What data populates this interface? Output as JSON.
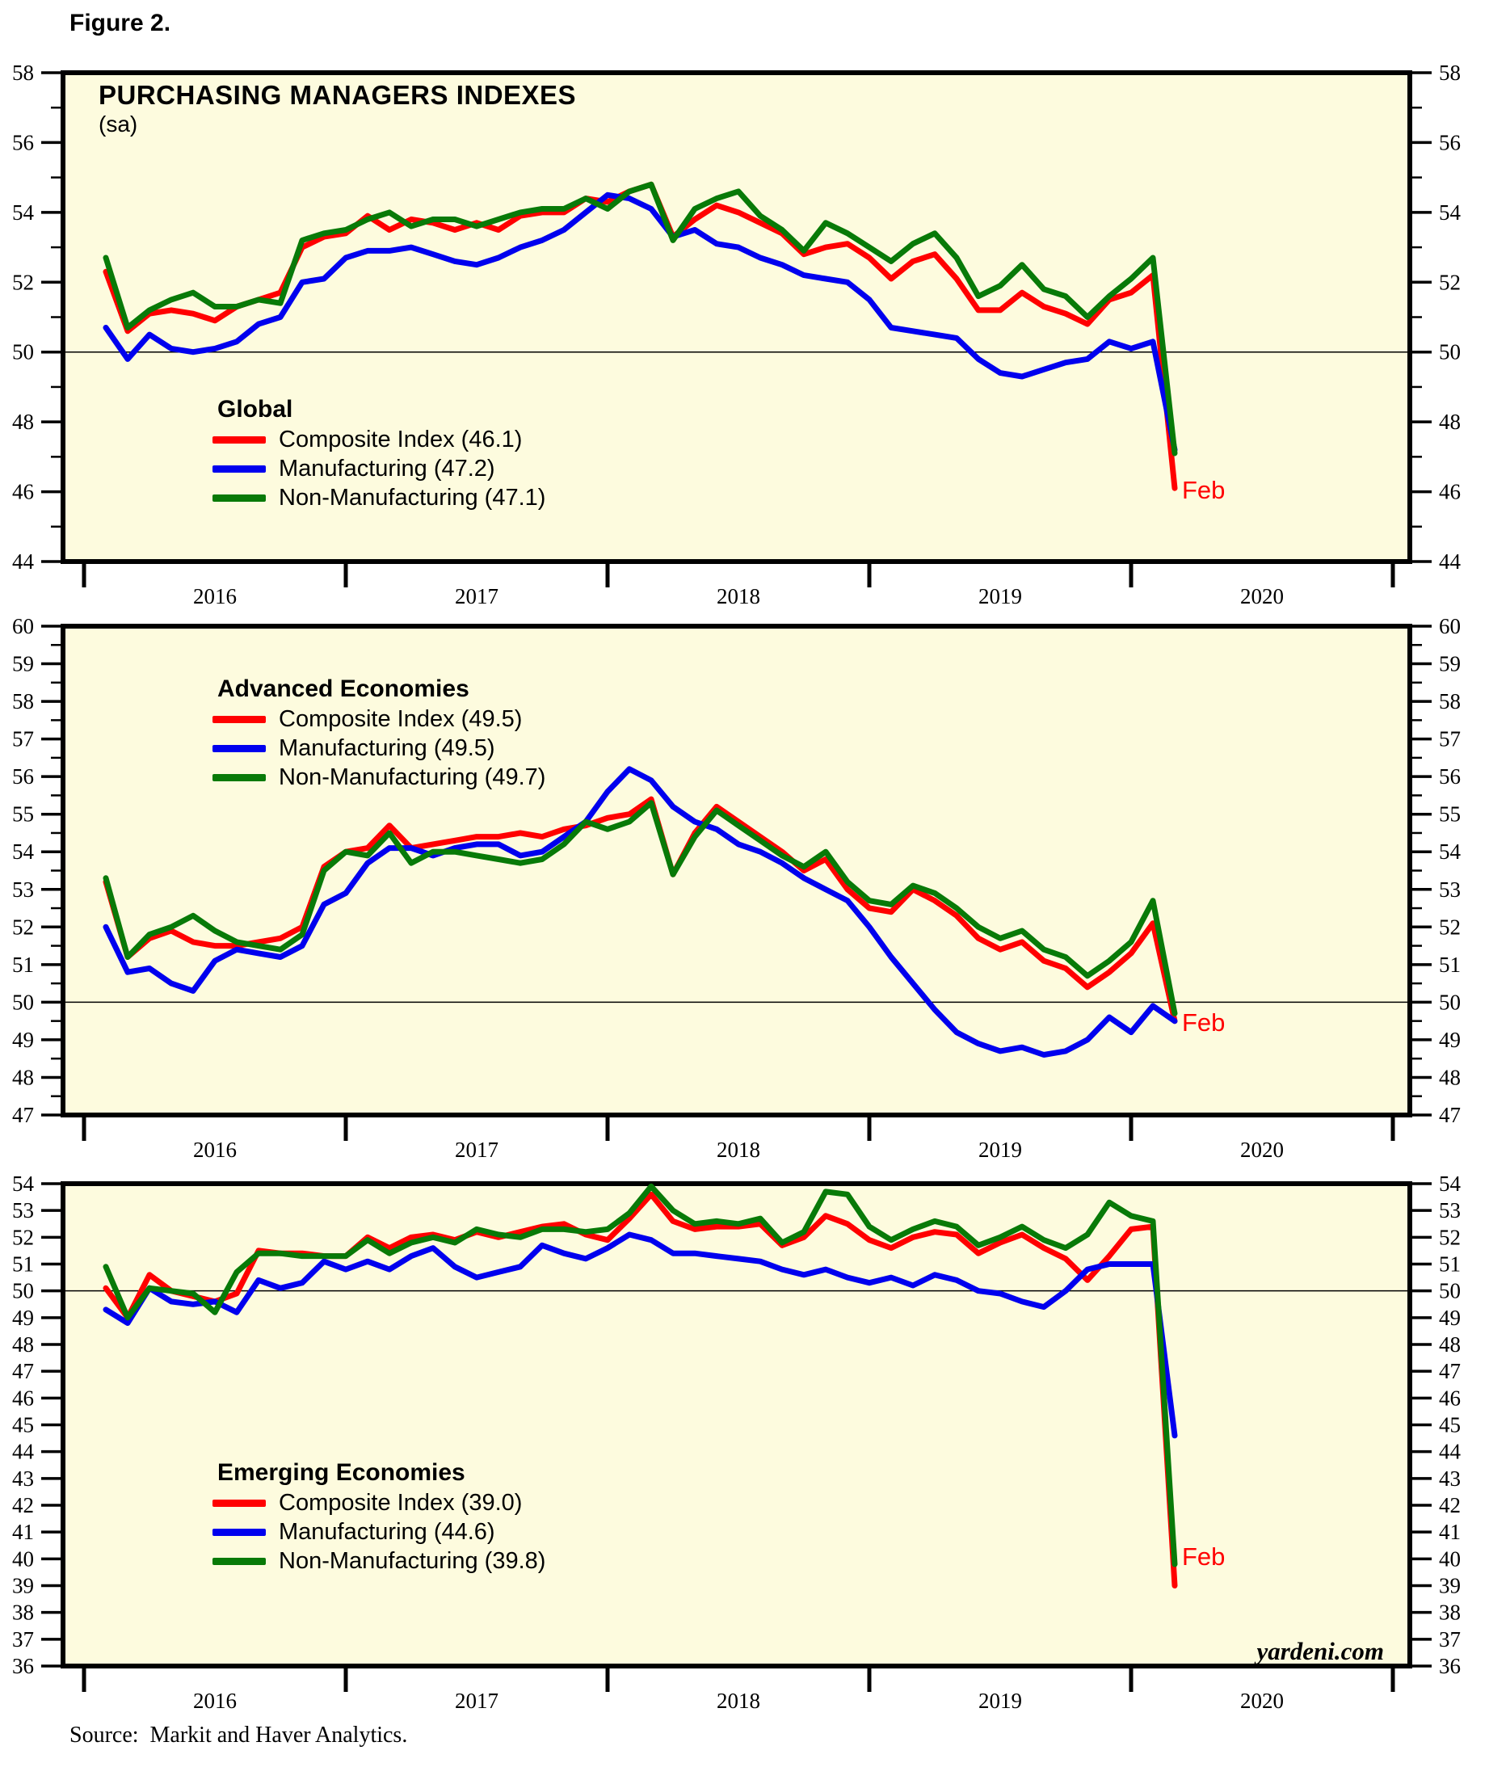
{
  "figure": {
    "label": "Figure 2."
  },
  "source_line": "Source:  Markit and Haver Analytics.",
  "watermark": "yardeni.com",
  "colors": {
    "composite": "#ff0000",
    "manufacturing": "#0000ee",
    "non_manufacturing": "#087a08",
    "panel_background": "#fdfbde",
    "axis": "#000000",
    "feb_label": "#ff0000"
  },
  "x_axis": {
    "years": [
      "2016",
      "2017",
      "2018",
      "2019",
      "2020"
    ],
    "start_month": "2016-01",
    "end_month": "2020-02"
  },
  "chart_data": [
    {
      "type": "line",
      "title": "PURCHASING MANAGERS INDEXES",
      "subtitle": "(sa)",
      "group_label": "Global",
      "last_point_label": "Feb",
      "ylim": [
        44,
        58
      ],
      "ytick_label_step": 2,
      "ytick_minor_step": 1,
      "reference_line": 50,
      "grid": false,
      "legend_position": "lower-left",
      "series": [
        {
          "name": "Composite Index (46.1)",
          "color": "#ff0000",
          "values": [
            52.3,
            50.6,
            51.1,
            51.2,
            51.1,
            50.9,
            51.3,
            51.5,
            51.7,
            53.0,
            53.3,
            53.4,
            53.9,
            53.5,
            53.8,
            53.7,
            53.5,
            53.7,
            53.5,
            53.9,
            54.0,
            54.0,
            54.4,
            54.3,
            54.6,
            54.8,
            53.3,
            53.8,
            54.2,
            54.0,
            53.7,
            53.4,
            52.8,
            53.0,
            53.1,
            52.7,
            52.1,
            52.6,
            52.8,
            52.1,
            51.2,
            51.2,
            51.7,
            51.3,
            51.1,
            50.8,
            51.5,
            51.7,
            52.2,
            46.1
          ]
        },
        {
          "name": "Manufacturing (47.2)",
          "color": "#0000ee",
          "values": [
            50.7,
            49.8,
            50.5,
            50.1,
            50.0,
            50.1,
            50.3,
            50.8,
            51.0,
            52.0,
            52.1,
            52.7,
            52.9,
            52.9,
            53.0,
            52.8,
            52.6,
            52.5,
            52.7,
            53.0,
            53.2,
            53.5,
            54.0,
            54.5,
            54.4,
            54.1,
            53.3,
            53.5,
            53.1,
            53.0,
            52.7,
            52.5,
            52.2,
            52.1,
            52.0,
            51.5,
            50.7,
            50.6,
            50.5,
            50.4,
            49.8,
            49.4,
            49.3,
            49.5,
            49.7,
            49.8,
            50.3,
            50.1,
            50.3,
            47.2
          ]
        },
        {
          "name": "Non-Manufacturing (47.1)",
          "color": "#087a08",
          "values": [
            52.7,
            50.7,
            51.2,
            51.5,
            51.7,
            51.3,
            51.3,
            51.5,
            51.4,
            53.2,
            53.4,
            53.5,
            53.8,
            54.0,
            53.6,
            53.8,
            53.8,
            53.6,
            53.8,
            54.0,
            54.1,
            54.1,
            54.4,
            54.1,
            54.6,
            54.8,
            53.2,
            54.1,
            54.4,
            54.6,
            53.9,
            53.5,
            52.9,
            53.7,
            53.4,
            53.0,
            52.6,
            53.1,
            53.4,
            52.7,
            51.6,
            51.9,
            52.5,
            51.8,
            51.6,
            51.0,
            51.6,
            52.1,
            52.7,
            47.1
          ]
        }
      ]
    },
    {
      "type": "line",
      "title": "",
      "subtitle": "",
      "group_label": "Advanced Economies",
      "last_point_label": "Feb",
      "ylim": [
        47,
        60
      ],
      "ytick_label_step": 1,
      "ytick_minor_step": 0.5,
      "reference_line": 50,
      "grid": false,
      "legend_position": "upper-left",
      "series": [
        {
          "name": "Composite Index (49.5)",
          "color": "#ff0000",
          "values": [
            53.2,
            51.2,
            51.7,
            51.9,
            51.6,
            51.5,
            51.5,
            51.6,
            51.7,
            52.0,
            53.6,
            54.0,
            54.1,
            54.7,
            54.1,
            54.2,
            54.3,
            54.4,
            54.4,
            54.5,
            54.4,
            54.6,
            54.7,
            54.9,
            55.0,
            55.4,
            53.4,
            54.5,
            55.2,
            54.8,
            54.4,
            54.0,
            53.5,
            53.8,
            53.0,
            52.5,
            52.4,
            53.0,
            52.7,
            52.3,
            51.7,
            51.4,
            51.6,
            51.1,
            50.9,
            50.4,
            50.8,
            51.3,
            52.1,
            49.5
          ]
        },
        {
          "name": "Manufacturing (49.5)",
          "color": "#0000ee",
          "values": [
            52.0,
            50.8,
            50.9,
            50.5,
            50.3,
            51.1,
            51.4,
            51.3,
            51.2,
            51.5,
            52.6,
            52.9,
            53.7,
            54.1,
            54.1,
            53.9,
            54.1,
            54.2,
            54.2,
            53.9,
            54.0,
            54.4,
            54.8,
            55.6,
            56.2,
            55.9,
            55.2,
            54.8,
            54.6,
            54.2,
            54.0,
            53.7,
            53.3,
            53.0,
            52.7,
            52.0,
            51.2,
            50.5,
            49.8,
            49.2,
            48.9,
            48.7,
            48.8,
            48.6,
            48.7,
            49.0,
            49.6,
            49.2,
            49.9,
            49.5
          ]
        },
        {
          "name": "Non-Manufacturing (49.7)",
          "color": "#087a08",
          "values": [
            53.3,
            51.2,
            51.8,
            52.0,
            52.3,
            51.9,
            51.6,
            51.5,
            51.4,
            51.8,
            53.5,
            54.0,
            53.9,
            54.5,
            53.7,
            54.0,
            54.0,
            53.9,
            53.8,
            53.7,
            53.8,
            54.2,
            54.8,
            54.6,
            54.8,
            55.3,
            53.4,
            54.4,
            55.1,
            54.7,
            54.3,
            53.9,
            53.6,
            54.0,
            53.2,
            52.7,
            52.6,
            53.1,
            52.9,
            52.5,
            52.0,
            51.7,
            51.9,
            51.4,
            51.2,
            50.7,
            51.1,
            51.6,
            52.7,
            49.7
          ]
        }
      ]
    },
    {
      "type": "line",
      "title": "",
      "subtitle": "",
      "group_label": "Emerging Economies",
      "last_point_label": "Feb",
      "ylim": [
        36,
        54
      ],
      "ytick_label_step": 1,
      "ytick_minor_step": null,
      "reference_line": 50,
      "grid": false,
      "legend_position": "lower-left",
      "series": [
        {
          "name": "Composite Index (39.0)",
          "color": "#ff0000",
          "values": [
            50.1,
            49.0,
            50.6,
            50.0,
            49.8,
            49.6,
            49.9,
            51.5,
            51.4,
            51.4,
            51.3,
            51.3,
            52.0,
            51.6,
            52.0,
            52.1,
            51.9,
            52.2,
            52.0,
            52.2,
            52.4,
            52.5,
            52.1,
            51.9,
            52.7,
            53.6,
            52.6,
            52.3,
            52.4,
            52.4,
            52.5,
            51.7,
            52.0,
            52.8,
            52.5,
            51.9,
            51.6,
            52.0,
            52.2,
            52.1,
            51.4,
            51.8,
            52.1,
            51.6,
            51.2,
            50.4,
            51.3,
            52.3,
            52.4,
            39.0
          ]
        },
        {
          "name": "Manufacturing (44.6)",
          "color": "#0000ee",
          "values": [
            49.3,
            48.8,
            50.1,
            49.6,
            49.5,
            49.6,
            49.2,
            50.4,
            50.1,
            50.3,
            51.1,
            50.8,
            51.1,
            50.8,
            51.3,
            51.6,
            50.9,
            50.5,
            50.7,
            50.9,
            51.7,
            51.4,
            51.2,
            51.6,
            52.1,
            51.9,
            51.4,
            51.4,
            51.3,
            51.2,
            51.1,
            50.8,
            50.6,
            50.8,
            50.5,
            50.3,
            50.5,
            50.2,
            50.6,
            50.4,
            50.0,
            49.9,
            49.6,
            49.4,
            50.0,
            50.8,
            51.0,
            51.0,
            51.0,
            44.6
          ]
        },
        {
          "name": "Non-Manufacturing (39.8)",
          "color": "#087a08",
          "values": [
            50.9,
            49.0,
            50.1,
            50.0,
            49.9,
            49.2,
            50.7,
            51.4,
            51.4,
            51.3,
            51.3,
            51.3,
            51.9,
            51.4,
            51.8,
            52.0,
            51.8,
            52.3,
            52.1,
            52.0,
            52.3,
            52.3,
            52.2,
            52.3,
            52.9,
            53.9,
            53.0,
            52.5,
            52.6,
            52.5,
            52.7,
            51.8,
            52.2,
            53.7,
            53.6,
            52.4,
            51.9,
            52.3,
            52.6,
            52.4,
            51.7,
            52.0,
            52.4,
            51.9,
            51.6,
            52.1,
            53.3,
            52.8,
            52.6,
            39.8
          ]
        }
      ]
    }
  ]
}
